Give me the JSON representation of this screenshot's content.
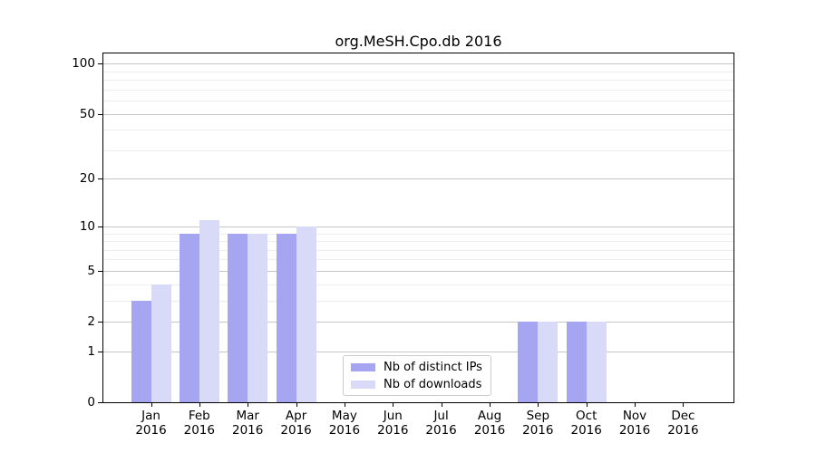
{
  "chart_data": {
    "type": "bar",
    "title": "org.MeSH.Cpo.db 2016",
    "categories": [
      "Jan",
      "Feb",
      "Mar",
      "Apr",
      "May",
      "Jun",
      "Jul",
      "Aug",
      "Sep",
      "Oct",
      "Nov",
      "Dec"
    ],
    "category_year": "2016",
    "series": [
      {
        "name": "Nb of distinct IPs",
        "color": "#a5a5f2",
        "values": [
          3,
          9,
          9,
          9,
          0,
          0,
          0,
          0,
          2,
          2,
          0,
          0
        ]
      },
      {
        "name": "Nb of downloads",
        "color": "#d9d9f8",
        "values": [
          4,
          11,
          9,
          10,
          0,
          0,
          0,
          0,
          2,
          2,
          0,
          0
        ]
      }
    ],
    "y_scale": "log1p",
    "y_ticks": [
      0,
      1,
      2,
      5,
      10,
      20,
      50,
      100
    ],
    "y_minor_ticks": [
      3,
      4,
      6,
      7,
      8,
      9,
      30,
      40,
      60,
      70,
      80,
      90
    ],
    "ylim": [
      0,
      115
    ],
    "xlabel": "",
    "ylabel": "",
    "grid": "horizontal",
    "legend_position": "lower center",
    "background_color": "#ffffff",
    "axis_color": "#000000",
    "grid_major_color": "#c6c6c6",
    "grid_minor_color": "#ededed"
  }
}
